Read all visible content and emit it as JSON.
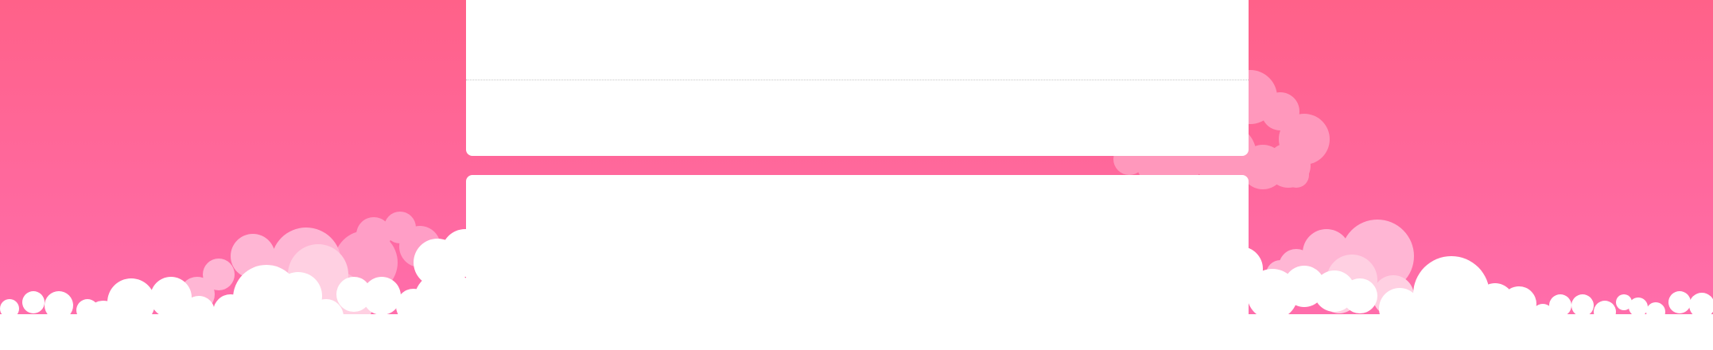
{
  "page": {
    "background_gradient": [
      "#ff6189",
      "#ff6ead"
    ],
    "cloud_colors": {
      "far": "#ffa0c8",
      "mid": "#ffbcd6",
      "light": "#ffd9e8",
      "front": "#ffffff"
    }
  },
  "cards": [
    {
      "name": "card-top",
      "has_divider": true
    },
    {
      "name": "card-bottom",
      "has_divider": false
    }
  ]
}
